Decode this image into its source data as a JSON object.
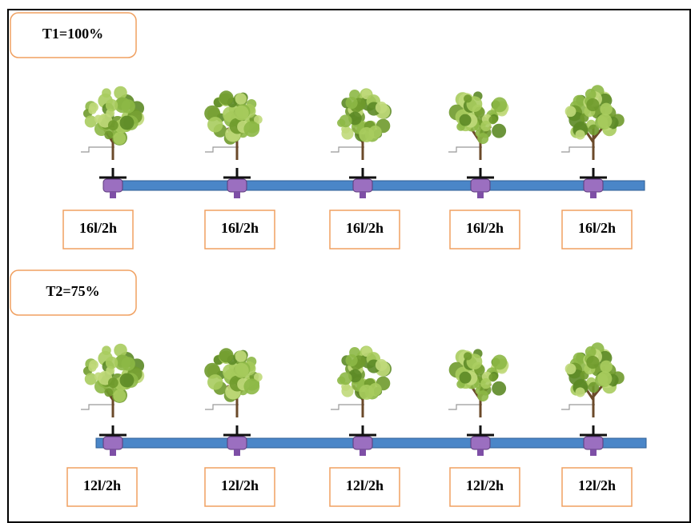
{
  "rows": [
    {
      "label": "T1=100%",
      "emitters": [
        "16l/2h",
        "16l/2h",
        "16l/2h",
        "16l/2h",
        "16l/2h"
      ]
    },
    {
      "label": "T2=75%",
      "emitters": [
        "12l/2h",
        "12l/2h",
        "12l/2h",
        "12l/2h",
        "12l/2h"
      ]
    }
  ]
}
